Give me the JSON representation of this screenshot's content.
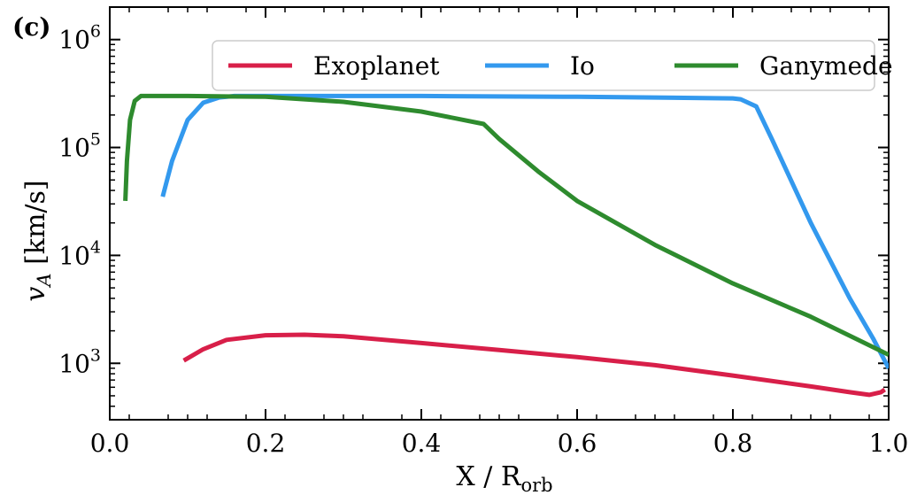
{
  "panel_label": "(c)",
  "chart_data": {
    "type": "line",
    "title": "",
    "xlabel_main": "X / R",
    "xlabel_sub": "orb",
    "ylabel_main": "v",
    "ylabel_sub": "A",
    "ylabel_unit": " [km/s]",
    "xlim": [
      0.0,
      1.0
    ],
    "ylim": [
      300,
      2000000
    ],
    "yscale": "log",
    "x_ticks": [
      0.0,
      0.2,
      0.4,
      0.6,
      0.8,
      1.0
    ],
    "x_tick_labels": [
      "0.0",
      "0.2",
      "0.4",
      "0.6",
      "0.8",
      "1.0"
    ],
    "y_ticks": [
      1000,
      10000,
      100000,
      1000000
    ],
    "y_tick_base": "10",
    "y_tick_exponents": [
      "3",
      "4",
      "5",
      "6"
    ],
    "grid": false,
    "legend_position": "top-right",
    "series": [
      {
        "name": "Exoplanet",
        "color": "#d81f49",
        "x": [
          0.095,
          0.12,
          0.15,
          0.2,
          0.25,
          0.3,
          0.4,
          0.5,
          0.6,
          0.7,
          0.8,
          0.9,
          0.95,
          0.975,
          0.99,
          0.995
        ],
        "y": [
          1060,
          1350,
          1650,
          1820,
          1840,
          1780,
          1540,
          1330,
          1140,
          960,
          770,
          610,
          540,
          510,
          540,
          570
        ]
      },
      {
        "name": "Io",
        "color": "#3399ee",
        "x": [
          0.068,
          0.08,
          0.1,
          0.12,
          0.14,
          0.16,
          0.2,
          0.4,
          0.6,
          0.8,
          0.81,
          0.83,
          0.85,
          0.9,
          0.95,
          0.98,
          1.0
        ],
        "y": [
          35000,
          75000,
          180000,
          260000,
          290000,
          300000,
          300000,
          300000,
          295000,
          285000,
          280000,
          240000,
          120000,
          20000,
          4000,
          1700,
          900
        ]
      },
      {
        "name": "Ganymede",
        "color": "#2e8b2e",
        "x": [
          0.02,
          0.022,
          0.026,
          0.032,
          0.04,
          0.06,
          0.1,
          0.2,
          0.3,
          0.4,
          0.48,
          0.5,
          0.55,
          0.6,
          0.7,
          0.8,
          0.9,
          1.0
        ],
        "y": [
          32000,
          75000,
          180000,
          270000,
          300000,
          300000,
          300000,
          295000,
          265000,
          215000,
          165000,
          120000,
          60000,
          32000,
          12500,
          5500,
          2700,
          1200
        ]
      }
    ]
  }
}
